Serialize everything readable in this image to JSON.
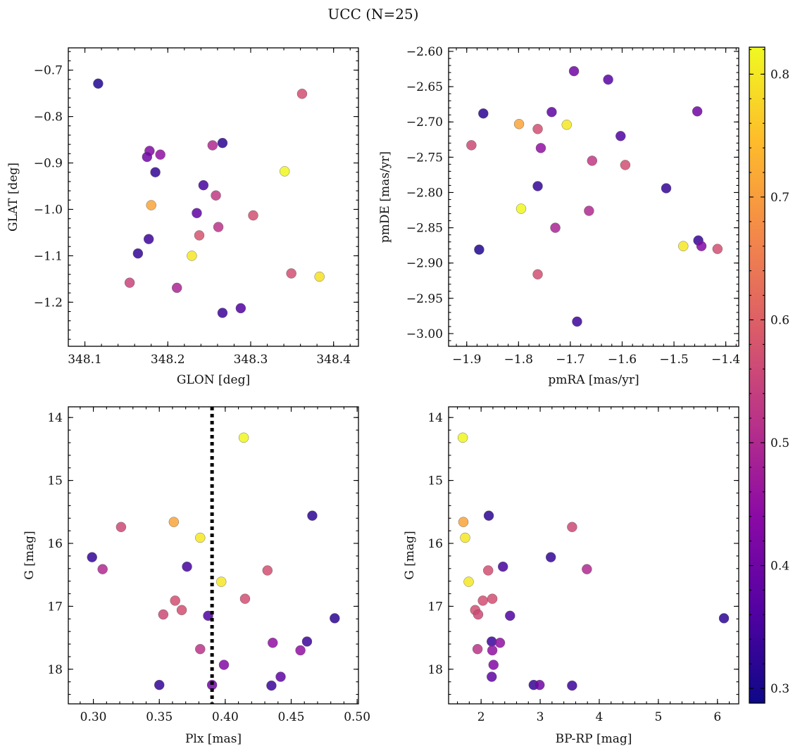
{
  "figure": {
    "title": "UCC (N=25)"
  },
  "colorbar": {
    "range": [
      0.288,
      0.822
    ],
    "ticks": [
      0.3,
      0.4,
      0.5,
      0.6,
      0.7,
      0.8
    ],
    "tick_labels": [
      "0.3",
      "0.4",
      "0.5",
      "0.6",
      "0.7",
      "0.8"
    ],
    "colormap": "plasma"
  },
  "chart_data": [
    {
      "type": "scatter",
      "xlabel": "GLON [deg]",
      "ylabel": "GLAT [deg]",
      "xlim": [
        348.08,
        348.43
      ],
      "ylim": [
        -1.295,
        -0.652
      ],
      "xticks": [
        348.1,
        348.2,
        348.3,
        348.4
      ],
      "xtick_labels": [
        "348.1",
        "348.2",
        "348.3",
        "348.4"
      ],
      "yticks": [
        -0.7,
        -0.8,
        -0.9,
        -1.0,
        -1.1,
        -1.2
      ],
      "ytick_labels": [
        "−0.7",
        "−0.8",
        "−0.9",
        "−1.0",
        "−1.1",
        "−1.2"
      ],
      "x": [
        348.116,
        348.362,
        348.178,
        348.175,
        348.191,
        348.185,
        348.254,
        348.266,
        348.341,
        348.243,
        348.258,
        348.18,
        348.235,
        348.303,
        348.261,
        348.238,
        348.177,
        348.164,
        348.229,
        348.349,
        348.383,
        348.154,
        348.211,
        348.288,
        348.266
      ],
      "y": [
        -0.729,
        -0.751,
        -0.874,
        -0.887,
        -0.882,
        -0.92,
        -0.862,
        -0.857,
        -0.918,
        -0.948,
        -0.97,
        -0.991,
        -1.008,
        -1.013,
        -1.038,
        -1.056,
        -1.064,
        -1.095,
        -1.1,
        -1.138,
        -1.145,
        -1.158,
        -1.169,
        -1.213,
        -1.223
      ],
      "c": [
        0.31,
        0.57,
        0.43,
        0.4,
        0.45,
        0.33,
        0.5,
        0.32,
        0.82,
        0.35,
        0.53,
        0.71,
        0.38,
        0.57,
        0.52,
        0.58,
        0.34,
        0.33,
        0.8,
        0.57,
        0.79,
        0.55,
        0.49,
        0.36,
        0.34
      ]
    },
    {
      "type": "scatter",
      "xlabel": "pmRA [mas/yr]",
      "ylabel": "pmDE [mas/yr]",
      "xlim": [
        -1.935,
        -1.375
      ],
      "ylim": [
        -3.018,
        -2.595
      ],
      "xticks": [
        -1.9,
        -1.8,
        -1.7,
        -1.6,
        -1.5,
        -1.4
      ],
      "xtick_labels": [
        "−1.9",
        "−1.8",
        "−1.7",
        "−1.6",
        "−1.5",
        "−1.4"
      ],
      "yticks": [
        -2.6,
        -2.65,
        -2.7,
        -2.75,
        -2.8,
        -2.85,
        -2.9,
        -2.95,
        -3.0
      ],
      "ytick_labels": [
        "−2.60",
        "−2.65",
        "−2.70",
        "−2.75",
        "−2.80",
        "−2.85",
        "−2.90",
        "−2.95",
        "−3.00"
      ],
      "x": [
        -1.693,
        -1.627,
        -1.868,
        -1.736,
        -1.455,
        -1.799,
        -1.707,
        -1.763,
        -1.891,
        -1.603,
        -1.757,
        -1.658,
        -1.594,
        -1.763,
        -1.515,
        -1.795,
        -1.664,
        -1.729,
        -1.876,
        -1.453,
        -1.482,
        -1.447,
        -1.416,
        -1.763,
        -1.687
      ],
      "y": [
        -2.628,
        -2.64,
        -2.688,
        -2.686,
        -2.685,
        -2.703,
        -2.704,
        -2.71,
        -2.733,
        -2.72,
        -2.737,
        -2.755,
        -2.761,
        -2.791,
        -2.794,
        -2.823,
        -2.826,
        -2.85,
        -2.881,
        -2.868,
        -2.876,
        -2.876,
        -2.88,
        -2.916,
        -2.983
      ],
      "c": [
        0.4,
        0.37,
        0.32,
        0.38,
        0.4,
        0.71,
        0.8,
        0.57,
        0.56,
        0.36,
        0.45,
        0.53,
        0.57,
        0.33,
        0.33,
        0.82,
        0.5,
        0.49,
        0.31,
        0.33,
        0.8,
        0.43,
        0.57,
        0.57,
        0.34
      ]
    },
    {
      "type": "scatter",
      "xlabel": "Plx [mas]",
      "ylabel": "G [mag]",
      "xlim": [
        0.281,
        0.501
      ],
      "ylim": [
        18.55,
        13.83
      ],
      "xticks": [
        0.3,
        0.35,
        0.4,
        0.45,
        0.5
      ],
      "xtick_labels": [
        "0.30",
        "0.35",
        "0.40",
        "0.45",
        "0.50"
      ],
      "yticks": [
        14,
        15,
        16,
        17,
        18
      ],
      "ytick_labels": [
        "14",
        "15",
        "16",
        "17",
        "18"
      ],
      "vline": 0.39,
      "x": [
        0.414,
        0.466,
        0.361,
        0.321,
        0.381,
        0.299,
        0.307,
        0.371,
        0.397,
        0.432,
        0.415,
        0.362,
        0.367,
        0.353,
        0.387,
        0.483,
        0.462,
        0.436,
        0.381,
        0.457,
        0.399,
        0.442,
        0.35,
        0.39,
        0.435
      ],
      "y": [
        14.32,
        15.56,
        15.66,
        15.74,
        15.91,
        16.22,
        16.41,
        16.37,
        16.61,
        16.43,
        16.88,
        16.91,
        17.06,
        17.13,
        17.15,
        17.19,
        17.56,
        17.58,
        17.68,
        17.7,
        17.93,
        18.12,
        18.25,
        18.25,
        18.26
      ],
      "c": [
        0.82,
        0.32,
        0.71,
        0.56,
        0.8,
        0.33,
        0.5,
        0.35,
        0.8,
        0.57,
        0.57,
        0.57,
        0.57,
        0.56,
        0.36,
        0.32,
        0.34,
        0.45,
        0.52,
        0.45,
        0.43,
        0.38,
        0.33,
        0.4,
        0.34
      ]
    },
    {
      "type": "scatter",
      "xlabel": "BP-RP [mag]",
      "ylabel": "G [mag]",
      "xlim": [
        1.45,
        6.36
      ],
      "ylim": [
        18.55,
        13.83
      ],
      "xticks": [
        2,
        3,
        4,
        5,
        6
      ],
      "xtick_labels": [
        "2",
        "3",
        "4",
        "5",
        "6"
      ],
      "yticks": [
        14,
        15,
        16,
        17,
        18
      ],
      "ytick_labels": [
        "14",
        "15",
        "16",
        "17",
        "18"
      ],
      "x": [
        1.69,
        2.13,
        1.7,
        3.54,
        1.73,
        3.18,
        3.79,
        2.37,
        1.79,
        2.12,
        2.19,
        2.03,
        1.9,
        1.95,
        2.49,
        6.11,
        2.18,
        2.32,
        1.94,
        2.19,
        2.21,
        2.18,
        2.89,
        2.99,
        3.54
      ],
      "y": [
        14.32,
        15.56,
        15.66,
        15.74,
        15.91,
        16.22,
        16.41,
        16.37,
        16.61,
        16.43,
        16.88,
        16.91,
        17.06,
        17.13,
        17.15,
        17.19,
        17.56,
        17.58,
        17.68,
        17.7,
        17.93,
        18.12,
        18.25,
        18.25,
        18.26
      ],
      "c": [
        0.82,
        0.32,
        0.71,
        0.56,
        0.8,
        0.33,
        0.5,
        0.35,
        0.8,
        0.57,
        0.57,
        0.57,
        0.57,
        0.56,
        0.36,
        0.32,
        0.34,
        0.45,
        0.52,
        0.45,
        0.43,
        0.38,
        0.33,
        0.4,
        0.34
      ]
    }
  ]
}
